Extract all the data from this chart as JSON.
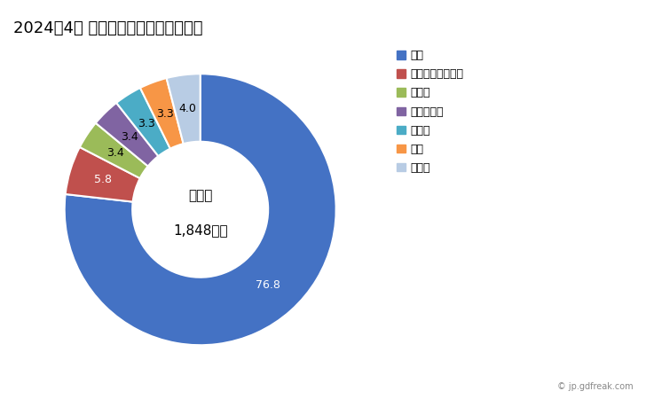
{
  "title": "2024年4月 輸出相手国のシェア（％）",
  "center_text_line1": "総　額",
  "center_text_line2": "1,848万円",
  "labels": [
    "米国",
    "アラブ首長国連邦",
    "ペルー",
    "マレーシア",
    "トルコ",
    "タイ",
    "その他"
  ],
  "values": [
    76.8,
    5.8,
    3.4,
    3.4,
    3.3,
    3.3,
    4.0
  ],
  "colors": [
    "#4472C4",
    "#C0504D",
    "#9BBB59",
    "#8064A2",
    "#4BACC6",
    "#F79646",
    "#B8CCE4"
  ],
  "slice_labels": [
    "76.8",
    "5.8",
    "3.4",
    "3.4",
    "3.3",
    "3.3",
    "4.0"
  ],
  "watermark": "© jp.gdfreak.com",
  "title_fontsize": 13,
  "legend_fontsize": 9,
  "label_fontsize": 9,
  "background_color": "#ffffff"
}
